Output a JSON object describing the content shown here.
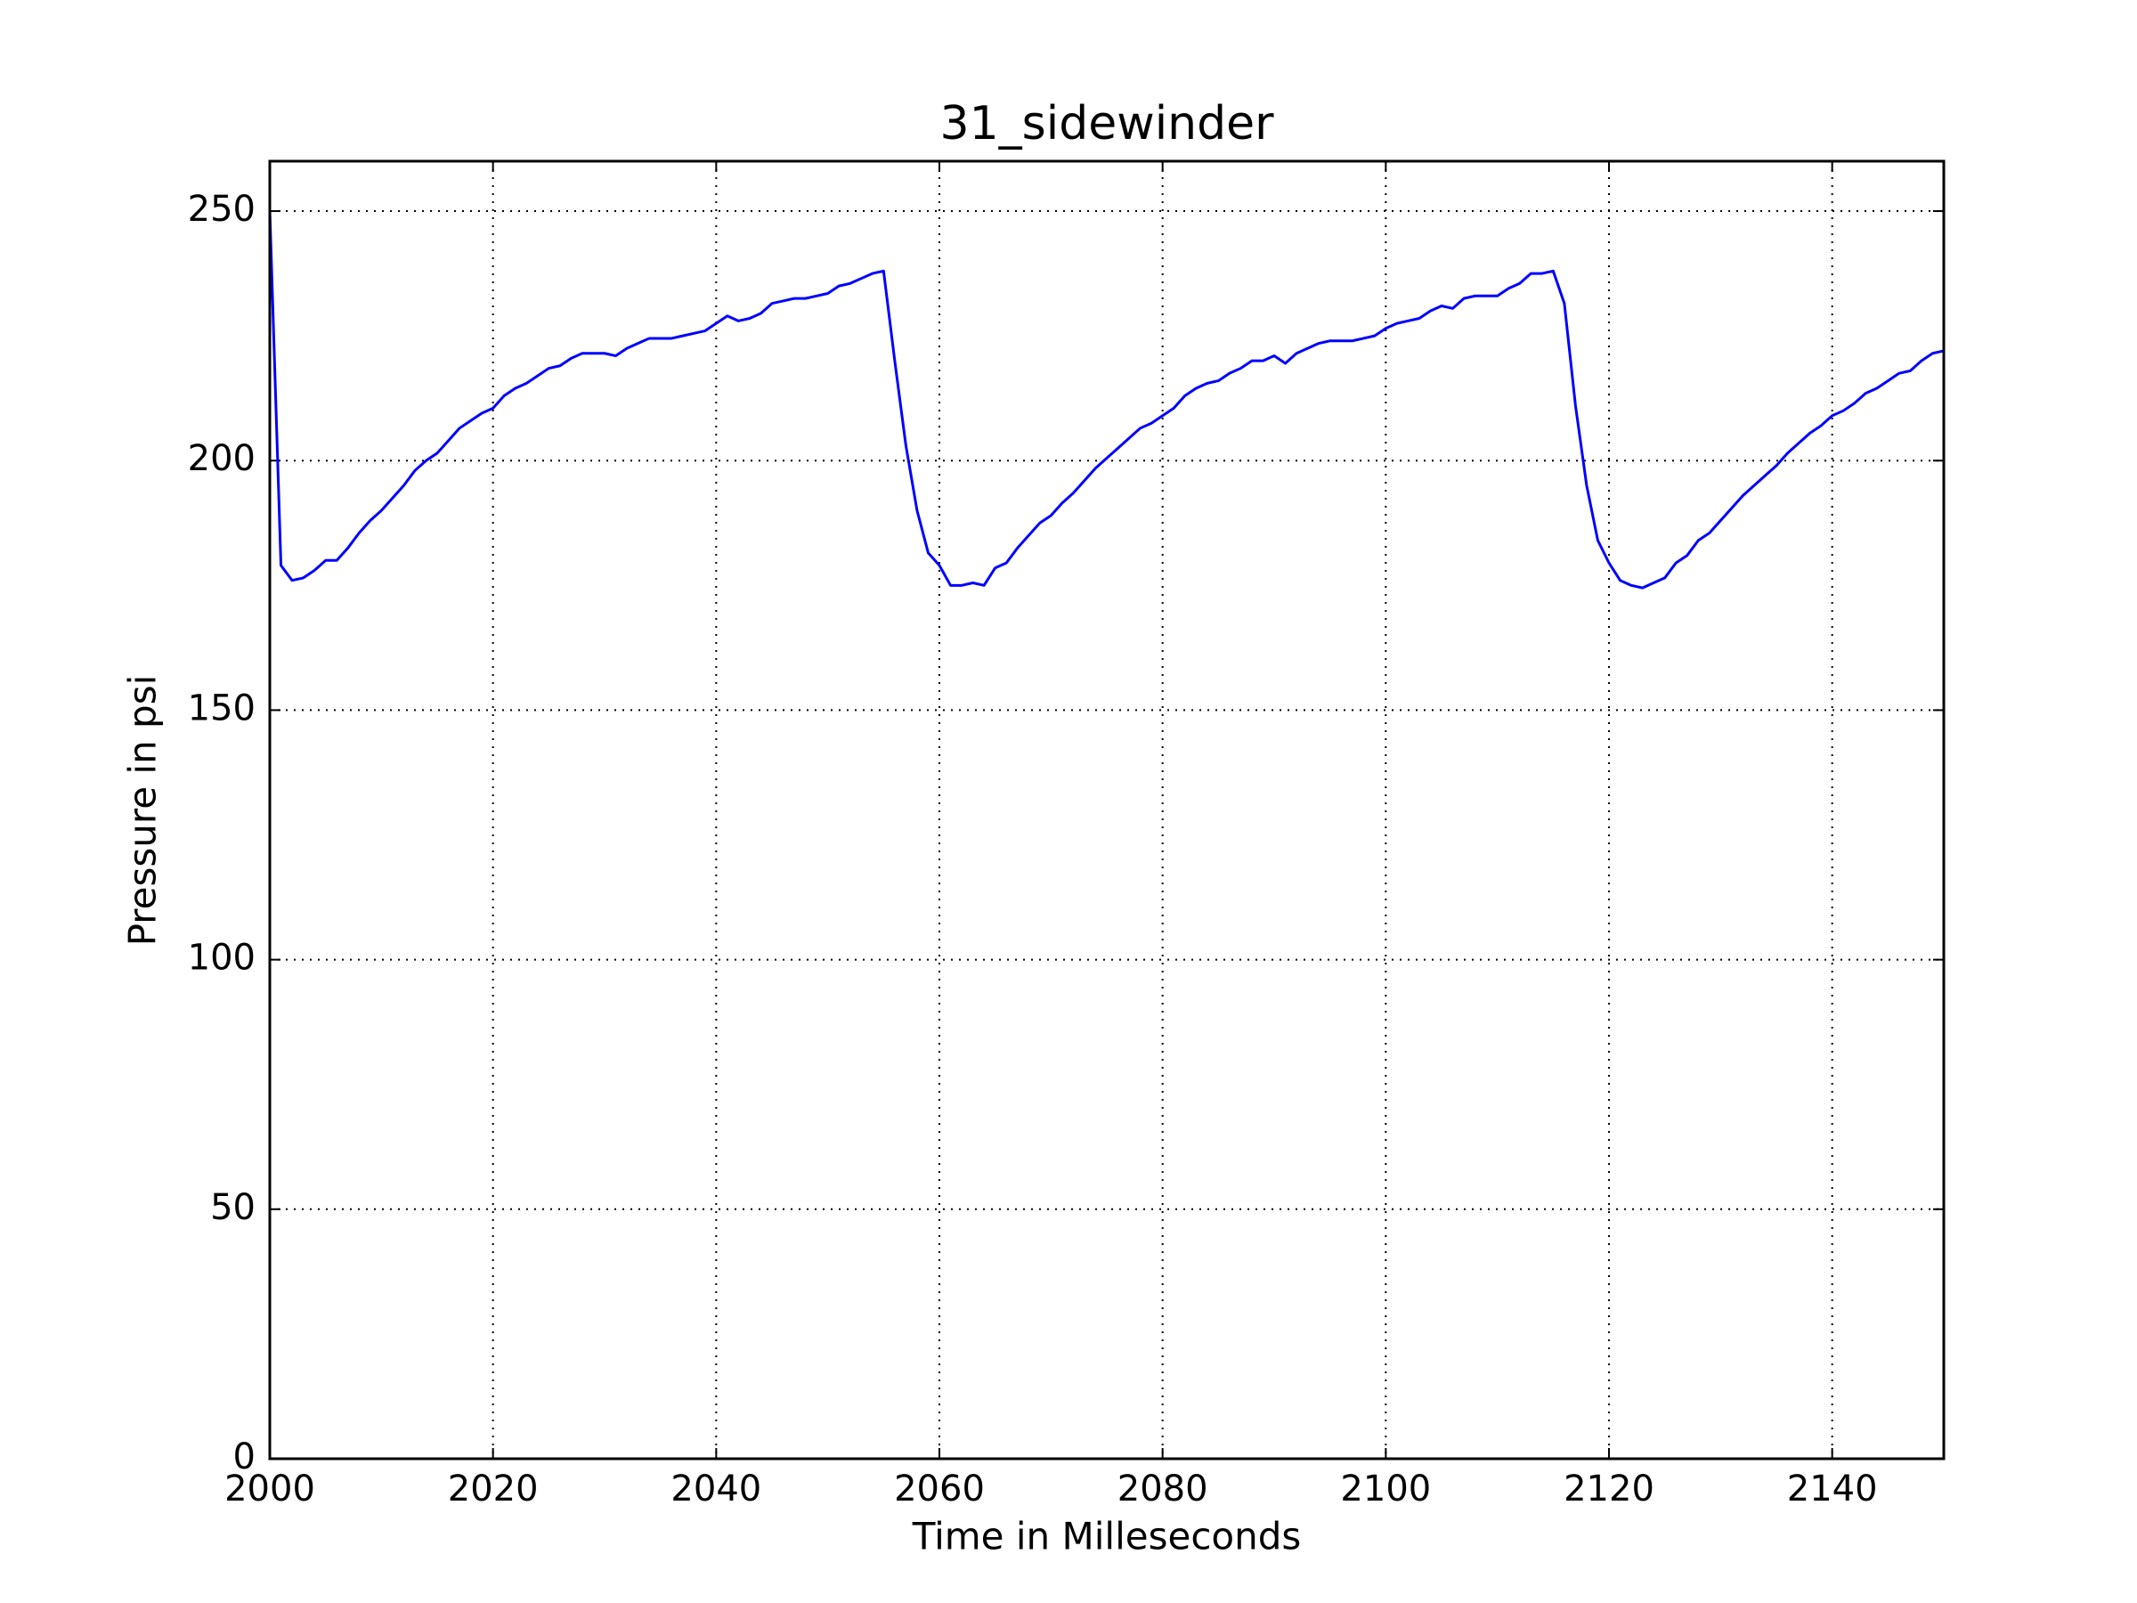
{
  "chart_data": {
    "type": "line",
    "title": "31_sidewinder",
    "xlabel": "Time in Milleseconds",
    "ylabel": "Pressure in psi",
    "x": [
      2000,
      2001,
      2002,
      2003,
      2004,
      2005,
      2006,
      2007,
      2008,
      2009,
      2010,
      2011,
      2012,
      2013,
      2014,
      2015,
      2016,
      2017,
      2018,
      2019,
      2020,
      2021,
      2022,
      2023,
      2024,
      2025,
      2026,
      2027,
      2028,
      2029,
      2030,
      2031,
      2032,
      2033,
      2034,
      2035,
      2036,
      2037,
      2038,
      2039,
      2040,
      2041,
      2042,
      2043,
      2044,
      2045,
      2046,
      2047,
      2048,
      2049,
      2050,
      2051,
      2052,
      2053,
      2054,
      2055,
      2056,
      2057,
      2058,
      2059,
      2060,
      2061,
      2062,
      2063,
      2064,
      2065,
      2066,
      2067,
      2068,
      2069,
      2070,
      2071,
      2072,
      2073,
      2074,
      2075,
      2076,
      2077,
      2078,
      2079,
      2080,
      2081,
      2082,
      2083,
      2084,
      2085,
      2086,
      2087,
      2088,
      2089,
      2090,
      2091,
      2092,
      2093,
      2094,
      2095,
      2096,
      2097,
      2098,
      2099,
      2100,
      2101,
      2102,
      2103,
      2104,
      2105,
      2106,
      2107,
      2108,
      2109,
      2110,
      2111,
      2112,
      2113,
      2114,
      2115,
      2116,
      2117,
      2118,
      2119,
      2120,
      2121,
      2122,
      2123,
      2124,
      2125,
      2126,
      2127,
      2128,
      2129,
      2130,
      2131,
      2132,
      2133,
      2134,
      2135,
      2136,
      2137,
      2138,
      2139,
      2140,
      2141,
      2142,
      2143,
      2144,
      2145,
      2146,
      2147,
      2148,
      2149,
      2150
    ],
    "series": [
      {
        "color": "#0000ff",
        "values": [
          250,
          179,
          176,
          176.5,
          178,
          180,
          180,
          182.5,
          185.5,
          188,
          190,
          192.5,
          195,
          198,
          200,
          201.5,
          204,
          206.5,
          208,
          209.5,
          210.5,
          213,
          214.5,
          215.5,
          217,
          218.5,
          219,
          220.5,
          221.5,
          221.5,
          221.5,
          221,
          222.5,
          223.5,
          224.5,
          224.5,
          224.5,
          225,
          225.5,
          226,
          227.5,
          229,
          228,
          228.5,
          229.5,
          231.5,
          232,
          232.5,
          232.5,
          233,
          233.5,
          235,
          235.5,
          236.5,
          237.5,
          238,
          220,
          203,
          190,
          181.5,
          179,
          175,
          175,
          175.5,
          175,
          178.5,
          179.5,
          182.5,
          185,
          187.5,
          189,
          191.5,
          193.5,
          196,
          198.5,
          200.5,
          202.5,
          204.5,
          206.5,
          207.5,
          209,
          210.5,
          213,
          214.5,
          215.5,
          216,
          217.5,
          218.5,
          220,
          220,
          221,
          219.5,
          221.5,
          222.5,
          223.5,
          224,
          224,
          224,
          224.5,
          225,
          226.5,
          227.5,
          228,
          228.5,
          230,
          231,
          230.5,
          232.5,
          233,
          233,
          233,
          234.5,
          235.5,
          237.5,
          237.5,
          238,
          231.5,
          211,
          195,
          184,
          179.5,
          176,
          175,
          174.5,
          175.5,
          176.5,
          179.5,
          181,
          184,
          185.5,
          188,
          190.5,
          193,
          195,
          197,
          199,
          201.5,
          203.5,
          205.5,
          207,
          209,
          210,
          211.5,
          213.5,
          214.5,
          216,
          217.5,
          218,
          220,
          221.5,
          222
        ]
      }
    ],
    "xlim": [
      2000,
      2150
    ],
    "xticks": [
      2000,
      2020,
      2040,
      2060,
      2080,
      2100,
      2120,
      2140
    ],
    "ylim": [
      0,
      260
    ],
    "yticks": [
      0,
      50,
      100,
      150,
      200,
      250
    ],
    "grid": true
  }
}
